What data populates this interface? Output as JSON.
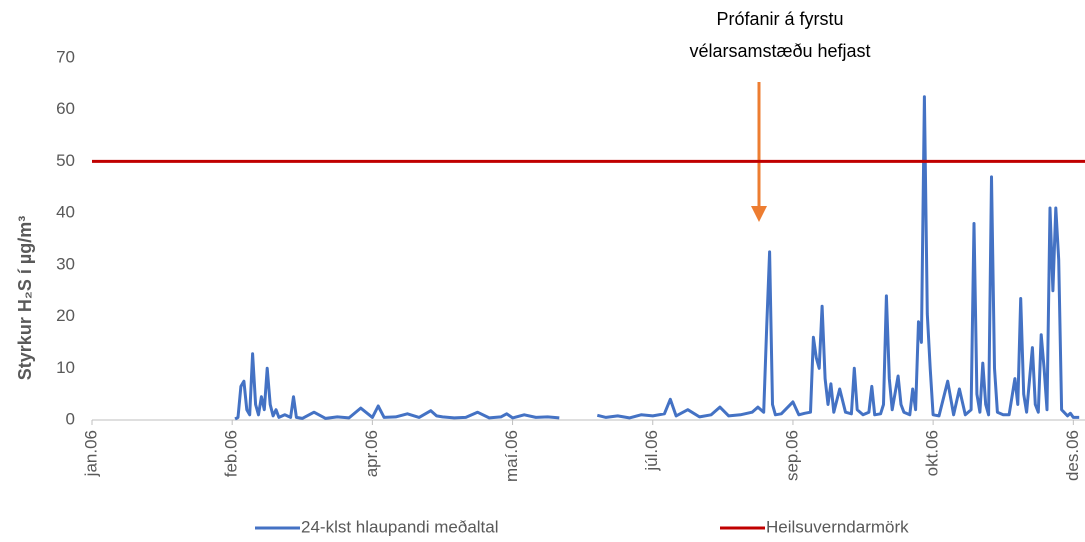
{
  "chart_data": {
    "type": "line",
    "annotation": [
      "Prófanir á fyrstu",
      "vélarsamstæðu hefjast"
    ],
    "y_label": "Styrkur H₂S í µg/m³",
    "xlim": [
      0,
      340
    ],
    "xticks": [
      {
        "value": 0,
        "label": "jan.06"
      },
      {
        "value": 48,
        "label": "feb.06"
      },
      {
        "value": 96,
        "label": "apr.06"
      },
      {
        "value": 144,
        "label": "maí.06"
      },
      {
        "value": 192,
        "label": "júl.06"
      },
      {
        "value": 240,
        "label": "sep.06"
      },
      {
        "value": 288,
        "label": "okt.06"
      },
      {
        "value": 336,
        "label": "des.06"
      }
    ],
    "ylim": [
      0,
      70
    ],
    "yticks": [
      0,
      10,
      20,
      30,
      40,
      50,
      60,
      70
    ],
    "grid": false,
    "legend": "bottom",
    "series": [
      {
        "name": "24-klst hlaupandi meðaltal",
        "color": "#4472c4",
        "x": [
          49,
          50,
          51,
          52,
          53,
          54,
          55,
          56,
          57,
          58,
          59,
          60,
          61,
          62,
          63,
          64,
          66,
          68,
          69,
          70,
          72,
          76,
          80,
          84,
          88,
          92,
          96,
          98,
          100,
          104,
          108,
          112,
          116,
          118,
          120,
          124,
          128,
          132,
          136,
          140,
          142,
          144,
          148,
          152,
          156,
          160,
          166,
          173,
          176,
          180,
          184,
          188,
          192,
          196,
          198,
          200,
          204,
          208,
          212,
          215,
          218,
          222,
          226,
          228,
          230,
          231,
          232,
          233,
          234,
          236,
          240,
          242,
          244,
          246,
          247,
          248,
          249,
          250,
          251,
          252,
          253,
          254,
          256,
          258,
          260,
          261,
          262,
          264,
          266,
          267,
          268,
          270,
          271,
          272,
          273,
          274,
          276,
          277,
          278,
          280,
          281,
          282,
          283,
          284,
          285,
          286,
          287,
          288,
          290,
          293,
          295,
          297,
          299,
          301,
          302,
          303,
          304,
          305,
          306,
          307,
          308,
          309,
          310,
          312,
          314,
          316,
          317,
          318,
          319,
          320,
          322,
          323,
          324,
          325,
          326,
          327,
          328,
          329,
          330,
          331,
          332,
          334,
          335,
          336,
          338
        ],
        "values": [
          0.2,
          0.5,
          6.5,
          7.5,
          2,
          1,
          12.8,
          3,
          1,
          4.5,
          2,
          10,
          3,
          0.8,
          2,
          0.5,
          1,
          0.5,
          4.5,
          0.5,
          0.3,
          1.5,
          0.3,
          0.6,
          0.4,
          2.3,
          0.5,
          2.7,
          0.5,
          0.6,
          1.2,
          0.5,
          1.8,
          0.8,
          0.6,
          0.4,
          0.5,
          1.5,
          0.4,
          0.6,
          1.2,
          0.4,
          1,
          0.5,
          0.6,
          0.4,
          null,
          0.9,
          0.5,
          0.8,
          0.4,
          1,
          0.8,
          1.2,
          4,
          0.8,
          2,
          0.6,
          1,
          2.5,
          0.8,
          1,
          1.5,
          2.5,
          1.5,
          18,
          32.5,
          3,
          1,
          1.2,
          3.5,
          1,
          1.3,
          1.5,
          16,
          12,
          10,
          22,
          8,
          3,
          7,
          1.5,
          6,
          1.5,
          1.2,
          10,
          2,
          1,
          1.5,
          6.5,
          1,
          1.2,
          3,
          24,
          8,
          2,
          8.5,
          3,
          1.5,
          1,
          6,
          2,
          19,
          15,
          62.5,
          20.5,
          10,
          1,
          0.8,
          7.5,
          1,
          6,
          1,
          2,
          38,
          5,
          1.5,
          11,
          3,
          1,
          47,
          10,
          1.5,
          1,
          1,
          8,
          3,
          23.5,
          5,
          1.5,
          14,
          3,
          1.5,
          16.5,
          10,
          2,
          41,
          25,
          41,
          31,
          2,
          0.8,
          1.3,
          0.5,
          0.5
        ]
      },
      {
        "name": "Heilsuverndarmörk",
        "color": "#c00000",
        "x": [
          0,
          340
        ],
        "values": [
          50,
          50
        ]
      }
    ]
  }
}
